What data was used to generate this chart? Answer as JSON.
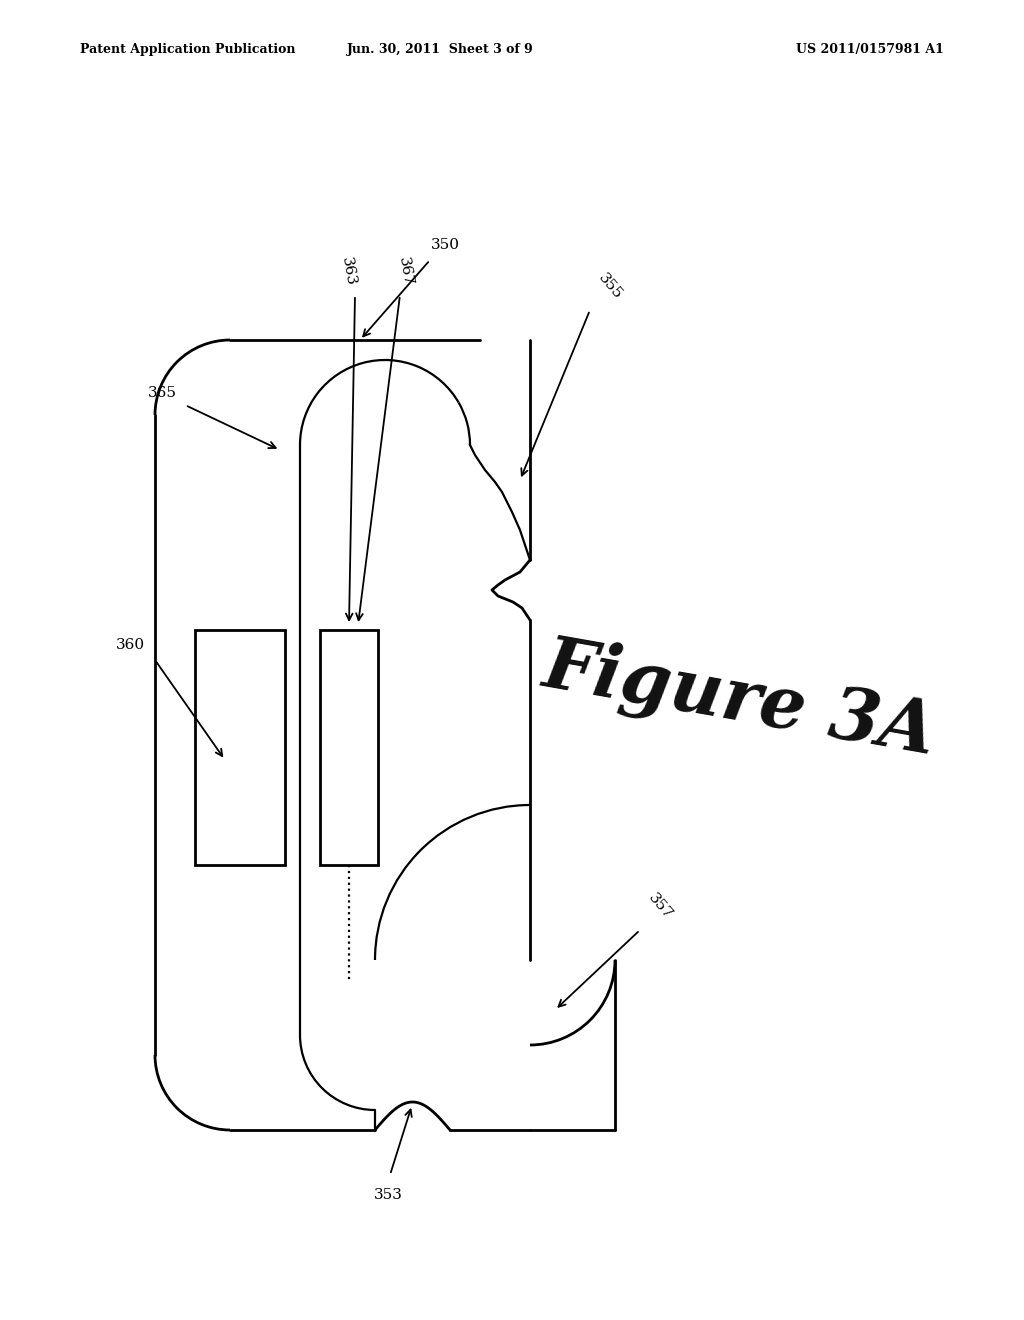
{
  "background_color": "#ffffff",
  "header_left": "Patent Application Publication",
  "header_center": "Jun. 30, 2011  Sheet 3 of 9",
  "header_right": "US 2011/0157981 A1",
  "figure_label": "Figure 3A",
  "line_color": "#000000",
  "line_width": 1.6,
  "lw_thick": 2.0,
  "label_fontsize": 11
}
